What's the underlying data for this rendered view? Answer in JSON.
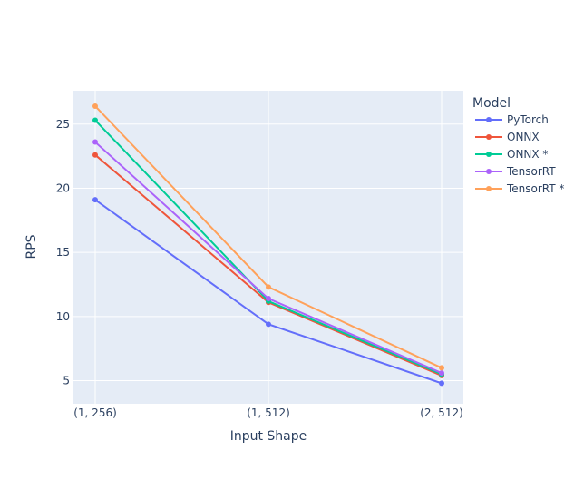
{
  "chart_data": {
    "type": "line",
    "title": "",
    "xlabel": "Input Shape",
    "ylabel": "RPS",
    "categories": [
      "(1, 256)",
      "(1, 512)",
      "(2, 512)"
    ],
    "ylim": [
      3.2,
      27.6
    ],
    "yticks": [
      5,
      10,
      15,
      20,
      25
    ],
    "grid": true,
    "legend": {
      "title": "Model",
      "position": "right"
    },
    "series": [
      {
        "name": "PyTorch",
        "color": "#636efa",
        "values": [
          19.1,
          9.4,
          4.8
        ]
      },
      {
        "name": "ONNX",
        "color": "#ef553b",
        "values": [
          22.6,
          11.1,
          5.4
        ]
      },
      {
        "name": "ONNX *",
        "color": "#00cc96",
        "values": [
          25.3,
          11.2,
          5.5
        ]
      },
      {
        "name": "TensorRT",
        "color": "#ab63fa",
        "values": [
          23.6,
          11.4,
          5.6
        ]
      },
      {
        "name": "TensorRT *",
        "color": "#ffa15a",
        "values": [
          26.4,
          12.3,
          6.0
        ]
      }
    ]
  }
}
